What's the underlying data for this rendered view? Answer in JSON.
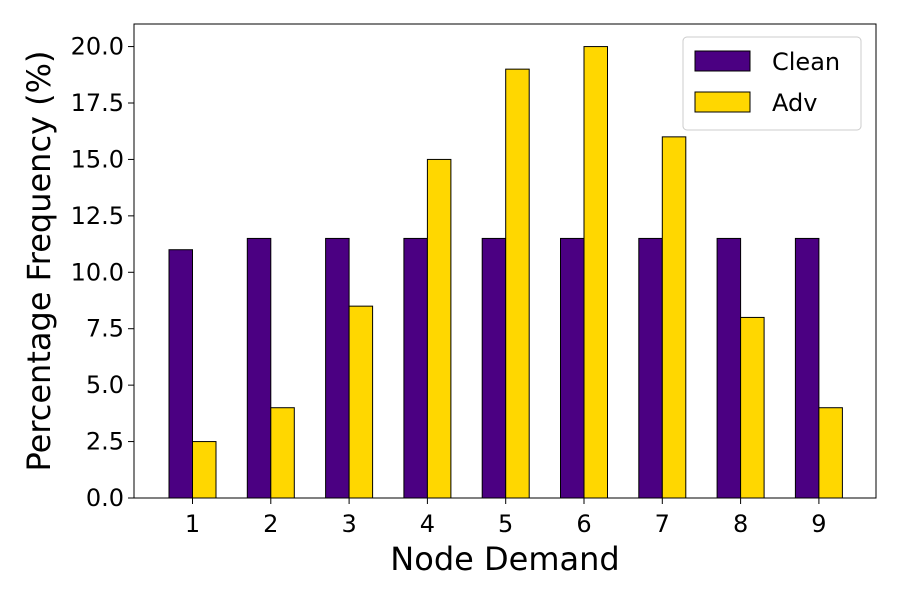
{
  "chart_data": {
    "type": "bar",
    "title": "",
    "xlabel": "Node Demand",
    "ylabel": "Percentage Frequency (%)",
    "categories": [
      "1",
      "2",
      "3",
      "4",
      "5",
      "6",
      "7",
      "8",
      "9"
    ],
    "series": [
      {
        "name": "Clean",
        "color": "#4b0082",
        "values": [
          11.0,
          11.5,
          11.5,
          11.5,
          11.5,
          11.5,
          11.5,
          11.5,
          11.5
        ]
      },
      {
        "name": "Adv",
        "color": "#ffd700",
        "values": [
          2.5,
          4.0,
          8.5,
          15.0,
          19.0,
          20.0,
          16.0,
          8.0,
          4.0
        ]
      }
    ],
    "yticks": [
      "0.0",
      "2.5",
      "5.0",
      "7.5",
      "10.0",
      "12.5",
      "15.0",
      "17.5",
      "20.0"
    ],
    "ylim": [
      0,
      21
    ],
    "grid": false,
    "legend_position": "top-right"
  }
}
